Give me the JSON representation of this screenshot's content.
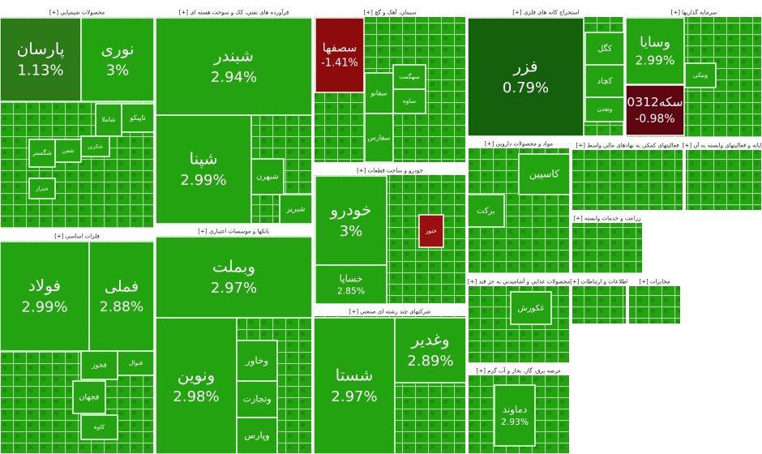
{
  "chart_data": {
    "type": "treemap",
    "color": "#23a30f",
    "sectors": [
      {
        "name": "محصولات شیمیایی [+]",
        "tiles": [
          {
            "label": "پارسان",
            "value": 1.13,
            "value_label": "1.13%",
            "color": "#2b7a17"
          },
          {
            "label": "نوری",
            "value": 3,
            "value_label": "3%"
          },
          {
            "label": "تاپیکو"
          },
          {
            "label": "شاملا"
          },
          {
            "label": "شکربن"
          },
          {
            "label": "شفن"
          },
          {
            "label": "شگستر"
          },
          {
            "label": "شیراز"
          }
        ]
      },
      {
        "name": "فرآورده های نفتی، کک و سوخت هسته ای [+]",
        "tiles": [
          {
            "label": "شبندر",
            "value": 2.94,
            "value_label": "2.94%"
          },
          {
            "label": "شپنا",
            "value": 2.99,
            "value_label": "2.99%"
          },
          {
            "label": "شبهرن"
          },
          {
            "label": "شبریز"
          }
        ]
      },
      {
        "name": "سیمان، آهک و گچ [+]",
        "tiles": [
          {
            "label": "سصفها",
            "value": -1.41,
            "value_label": "-1.41%",
            "color": "#8e0b0b"
          },
          {
            "label": "سفارس"
          },
          {
            "label": "ساوه"
          },
          {
            "label": "سهگمت"
          },
          {
            "label": "سفانو"
          }
        ]
      },
      {
        "name": "استخراج کانه های فلزی [+]",
        "tiles": [
          {
            "label": "فزر",
            "value": 0.79,
            "value_label": "0.79%",
            "color": "#15600c"
          },
          {
            "label": "کگل"
          },
          {
            "label": "کچاد"
          },
          {
            "label": "وتعدن"
          }
        ]
      },
      {
        "name": "سرمایه گذاریها [+]",
        "tiles": [
          {
            "label": "وسایا",
            "value": 2.99,
            "value_label": "2.99%"
          },
          {
            "label": "سکه0312",
            "value": -0.98,
            "value_label": "-0.98%",
            "color": "#5e0610"
          },
          {
            "label": "ونیکی"
          }
        ]
      },
      {
        "name": "فلزات اساسی [+]",
        "tiles": [
          {
            "label": "فولاد",
            "value": 2.99,
            "value_label": "2.99%"
          },
          {
            "label": "فملی",
            "value": 2.88,
            "value_label": "2.88%"
          },
          {
            "label": "فخوز"
          },
          {
            "label": "فجهان"
          },
          {
            "label": "کاوه"
          },
          {
            "label": "فنوال"
          }
        ]
      },
      {
        "name": "بانکها و موسسات اعتباری [+]",
        "tiles": [
          {
            "label": "وبملت",
            "value": 2.97,
            "value_label": "2.97%"
          },
          {
            "label": "ونوین",
            "value": 2.98,
            "value_label": "2.98%"
          },
          {
            "label": "وخاور"
          },
          {
            "label": "وتجارت"
          },
          {
            "label": "وپارس"
          }
        ]
      },
      {
        "name": "خودرو و ساخت قطعات [+]",
        "tiles": [
          {
            "label": "خودرو",
            "value": 3,
            "value_label": "3%"
          },
          {
            "label": "خساپا",
            "value": 2.85,
            "value_label": "2.85%"
          },
          {
            "label": "خنور",
            "color": "#9a1010"
          }
        ]
      },
      {
        "name": "شرکتهای چند رشته ای صنعتی [+]",
        "tiles": [
          {
            "label": "شستا",
            "value": 2.97,
            "value_label": "2.97%"
          },
          {
            "label": "وغدیر",
            "value": 2.89,
            "value_label": "2.89%"
          }
        ]
      },
      {
        "name": "مواد و محصولات دارویی [+]",
        "tiles": [
          {
            "label": "کاسپین"
          },
          {
            "label": "برکت"
          }
        ]
      },
      {
        "name": "محصولات غذایی و آشامیدنی به جز قند [+]",
        "tiles": [
          {
            "label": "غکورش"
          }
        ]
      },
      {
        "name": "عرضه برق، گاز، بخار و آب گرم [+]",
        "tiles": [
          {
            "label": "دماوند",
            "value": 2.93,
            "value_label": "2.93%"
          }
        ]
      },
      {
        "name": "فعالیتهای کمکی به نهادهای مالی واسط [+]",
        "tiles": []
      },
      {
        "name": "رایانه و فعالیتهای وابسته به آن [+]",
        "tiles": []
      },
      {
        "name": "زراعت و خدمات وابسته [+]",
        "tiles": []
      },
      {
        "name": "اطلاعات و ارتباطات [+]",
        "tiles": []
      },
      {
        "name": "مخابرات [+]",
        "tiles": []
      }
    ]
  }
}
